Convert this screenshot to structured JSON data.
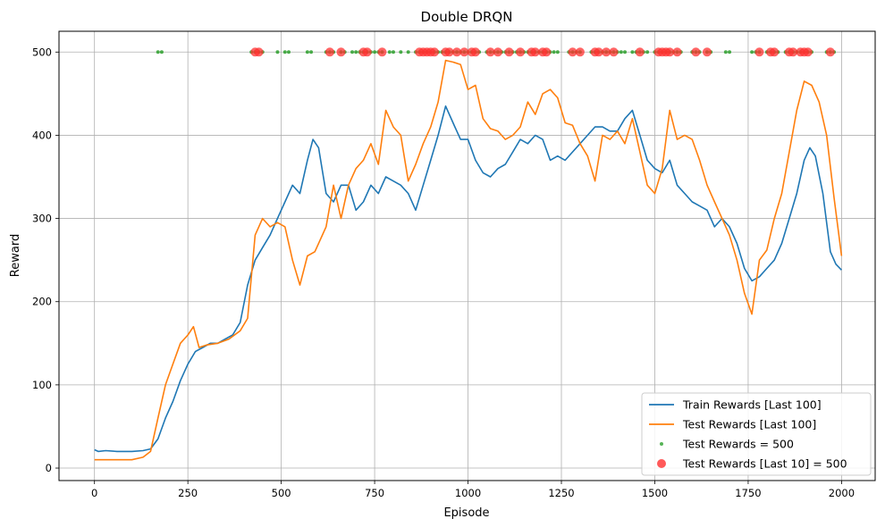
{
  "chart_data": {
    "type": "line",
    "title": "Double DRQN",
    "xlabel": "Episode",
    "ylabel": "Reward",
    "xlim": [
      -95,
      2090
    ],
    "ylim": [
      -15,
      525
    ],
    "x_ticks": [
      0,
      250,
      500,
      750,
      1000,
      1250,
      1500,
      1750,
      2000
    ],
    "y_ticks": [
      0,
      100,
      200,
      300,
      400,
      500
    ],
    "grid": true,
    "legend_position": "lower right",
    "series": [
      {
        "name": "Train Rewards [Last 100]",
        "color": "#1f77b4",
        "x": [
          0,
          10,
          30,
          60,
          100,
          130,
          150,
          170,
          190,
          210,
          230,
          250,
          270,
          290,
          310,
          330,
          350,
          370,
          390,
          410,
          430,
          450,
          470,
          490,
          510,
          530,
          550,
          570,
          585,
          600,
          620,
          640,
          660,
          680,
          700,
          720,
          740,
          760,
          780,
          800,
          820,
          840,
          860,
          880,
          900,
          920,
          940,
          960,
          980,
          1000,
          1020,
          1040,
          1060,
          1080,
          1100,
          1120,
          1140,
          1160,
          1180,
          1200,
          1220,
          1240,
          1260,
          1280,
          1300,
          1320,
          1340,
          1360,
          1380,
          1400,
          1420,
          1440,
          1460,
          1480,
          1500,
          1520,
          1540,
          1560,
          1580,
          1600,
          1620,
          1640,
          1660,
          1680,
          1700,
          1720,
          1740,
          1760,
          1780,
          1800,
          1820,
          1840,
          1860,
          1880,
          1900,
          1915,
          1930,
          1950,
          1970,
          1985,
          2000
        ],
        "values": [
          22,
          20,
          21,
          20,
          20,
          21,
          23,
          35,
          60,
          80,
          105,
          125,
          140,
          145,
          150,
          150,
          155,
          160,
          175,
          220,
          250,
          265,
          280,
          300,
          320,
          340,
          330,
          370,
          395,
          385,
          330,
          320,
          340,
          340,
          310,
          320,
          340,
          330,
          350,
          345,
          340,
          330,
          310,
          340,
          370,
          400,
          435,
          415,
          395,
          395,
          370,
          355,
          350,
          360,
          365,
          380,
          395,
          390,
          400,
          395,
          370,
          375,
          370,
          380,
          390,
          400,
          410,
          410,
          405,
          405,
          420,
          430,
          400,
          370,
          360,
          355,
          370,
          340,
          330,
          320,
          315,
          310,
          290,
          300,
          290,
          270,
          240,
          225,
          230,
          240,
          250,
          270,
          300,
          330,
          370,
          385,
          375,
          330,
          260,
          245,
          238
        ]
      },
      {
        "name": "Test Rewards [Last 100]",
        "color": "#ff7f0e",
        "x": [
          0,
          50,
          100,
          130,
          150,
          170,
          190,
          210,
          230,
          250,
          265,
          280,
          300,
          330,
          360,
          390,
          410,
          430,
          450,
          470,
          490,
          510,
          530,
          550,
          570,
          590,
          620,
          640,
          660,
          680,
          700,
          720,
          740,
          760,
          780,
          800,
          820,
          840,
          860,
          880,
          900,
          920,
          940,
          960,
          980,
          1000,
          1020,
          1040,
          1060,
          1080,
          1100,
          1120,
          1140,
          1160,
          1180,
          1200,
          1220,
          1240,
          1260,
          1280,
          1300,
          1320,
          1340,
          1360,
          1380,
          1400,
          1420,
          1440,
          1460,
          1480,
          1500,
          1520,
          1540,
          1560,
          1580,
          1600,
          1620,
          1640,
          1660,
          1680,
          1700,
          1720,
          1740,
          1760,
          1780,
          1800,
          1820,
          1840,
          1860,
          1880,
          1900,
          1920,
          1940,
          1960,
          1980,
          2000
        ],
        "values": [
          10,
          10,
          10,
          13,
          20,
          60,
          100,
          125,
          150,
          160,
          170,
          145,
          148,
          150,
          155,
          165,
          180,
          280,
          300,
          290,
          295,
          290,
          250,
          220,
          255,
          260,
          290,
          340,
          300,
          340,
          360,
          370,
          390,
          365,
          430,
          410,
          400,
          345,
          365,
          390,
          410,
          440,
          490,
          488,
          485,
          455,
          460,
          420,
          408,
          405,
          395,
          400,
          410,
          440,
          425,
          450,
          455,
          445,
          415,
          412,
          390,
          375,
          345,
          400,
          395,
          405,
          390,
          420,
          380,
          340,
          330,
          360,
          430,
          395,
          400,
          395,
          370,
          340,
          320,
          300,
          280,
          250,
          210,
          185,
          250,
          262,
          300,
          330,
          380,
          430,
          465,
          460,
          440,
          400,
          325,
          255
        ]
      }
    ],
    "scatter_series": [
      {
        "name": "Test Rewards = 500",
        "color": "#2ca02c",
        "y": 500,
        "x": [
          170,
          180,
          420,
          430,
          440,
          450,
          490,
          510,
          520,
          570,
          580,
          620,
          630,
          640,
          660,
          670,
          690,
          700,
          710,
          720,
          730,
          740,
          750,
          760,
          770,
          790,
          800,
          820,
          840,
          860,
          870,
          880,
          890,
          900,
          910,
          920,
          930,
          940,
          950,
          960,
          970,
          980,
          990,
          1000,
          1010,
          1020,
          1030,
          1050,
          1060,
          1070,
          1080,
          1090,
          1100,
          1110,
          1120,
          1130,
          1140,
          1150,
          1160,
          1170,
          1180,
          1190,
          1200,
          1210,
          1220,
          1230,
          1240,
          1270,
          1280,
          1290,
          1300,
          1330,
          1340,
          1350,
          1360,
          1370,
          1380,
          1390,
          1400,
          1410,
          1420,
          1440,
          1450,
          1460,
          1470,
          1480,
          1500,
          1510,
          1520,
          1530,
          1540,
          1550,
          1560,
          1570,
          1600,
          1610,
          1620,
          1640,
          1650,
          1690,
          1700,
          1760,
          1770,
          1780,
          1800,
          1810,
          1820,
          1830,
          1850,
          1860,
          1870,
          1880,
          1890,
          1900,
          1910,
          1920,
          1960,
          1970,
          1980
        ]
      },
      {
        "name": "Test Rewards [Last 10] = 500",
        "color": "#ff3030",
        "y": 500,
        "x": [
          430,
          440,
          630,
          660,
          720,
          730,
          770,
          870,
          880,
          890,
          900,
          910,
          940,
          950,
          970,
          990,
          1010,
          1020,
          1060,
          1080,
          1110,
          1140,
          1170,
          1180,
          1200,
          1210,
          1280,
          1300,
          1340,
          1350,
          1370,
          1390,
          1460,
          1510,
          1520,
          1530,
          1540,
          1560,
          1610,
          1640,
          1780,
          1810,
          1820,
          1860,
          1870,
          1890,
          1900,
          1910,
          1970
        ]
      }
    ]
  }
}
